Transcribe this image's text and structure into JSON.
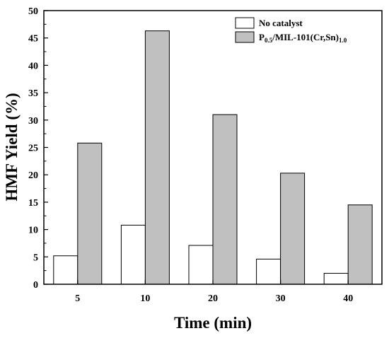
{
  "chart_data": {
    "type": "bar",
    "categories": [
      "5",
      "10",
      "20",
      "30",
      "40"
    ],
    "series": [
      {
        "name": "No catalyst",
        "values": [
          5.2,
          10.8,
          7.1,
          4.6,
          2.0
        ],
        "color": "#ffffff"
      },
      {
        "name": "P0.5/MIL-101(Cr,Sn)1.0",
        "values": [
          25.8,
          46.3,
          31.0,
          20.3,
          14.5
        ],
        "color": "#c0c0c0"
      }
    ],
    "legend_labels": [
      {
        "main": "No catalyst"
      },
      {
        "p1": "P",
        "s1": "0.5",
        "p2": "/MIL-101(Cr,Sn)",
        "s2": "1.0"
      }
    ],
    "xlabel": "Time (min)",
    "ylabel": "HMF Yield (%)",
    "ylim": [
      0,
      50
    ],
    "yticks": [
      0,
      5,
      10,
      15,
      20,
      25,
      30,
      35,
      40,
      45,
      50
    ],
    "grid": false,
    "legend_position": "top-right"
  }
}
